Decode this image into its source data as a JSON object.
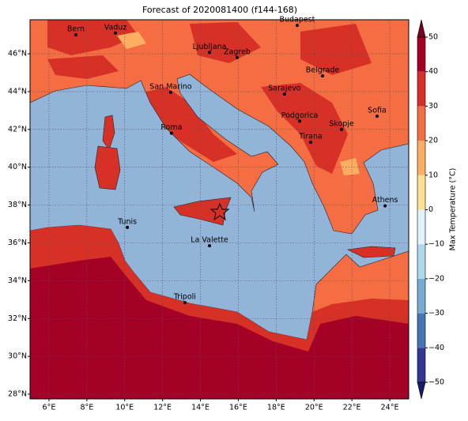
{
  "title": "Forecast of 2020081400 (f144-168)",
  "map": {
    "xlim": [
      5,
      25
    ],
    "ylim": [
      27.75,
      47.8
    ],
    "xticks": [
      {
        "value": 6,
        "label": "6°E"
      },
      {
        "value": 8,
        "label": "8°E"
      },
      {
        "value": 10,
        "label": "10°E"
      },
      {
        "value": 12,
        "label": "12°E"
      },
      {
        "value": 14,
        "label": "14°E"
      },
      {
        "value": 16,
        "label": "16°E"
      },
      {
        "value": 18,
        "label": "18°E"
      },
      {
        "value": 20,
        "label": "20°E"
      },
      {
        "value": 22,
        "label": "22°E"
      },
      {
        "value": 24,
        "label": "24°E"
      }
    ],
    "yticks": [
      {
        "value": 28,
        "label": "28°N"
      },
      {
        "value": 30,
        "label": "30°N"
      },
      {
        "value": 32,
        "label": "32°N"
      },
      {
        "value": 34,
        "label": "34°N"
      },
      {
        "value": 36,
        "label": "36°N"
      },
      {
        "value": 38,
        "label": "38°N"
      },
      {
        "value": 40,
        "label": "40°N"
      },
      {
        "value": 42,
        "label": "42°N"
      },
      {
        "value": 44,
        "label": "44°N"
      },
      {
        "value": 46,
        "label": "46°N"
      }
    ],
    "grid": true,
    "cities": [
      {
        "name": "Bern",
        "lon": 7.42,
        "lat": 47.0
      },
      {
        "name": "Vaduz",
        "lon": 9.51,
        "lat": 47.1
      },
      {
        "name": "Budapest",
        "lon": 19.11,
        "lat": 47.5
      },
      {
        "name": "Ljubljana",
        "lon": 14.48,
        "lat": 46.07
      },
      {
        "name": "Zagreb",
        "lon": 15.94,
        "lat": 45.8
      },
      {
        "name": "Belgrade",
        "lon": 20.45,
        "lat": 44.83
      },
      {
        "name": "San Marino",
        "lon": 12.43,
        "lat": 43.96
      },
      {
        "name": "Sarajevo",
        "lon": 18.44,
        "lat": 43.87
      },
      {
        "name": "Sofia",
        "lon": 23.33,
        "lat": 42.7
      },
      {
        "name": "Podgorica",
        "lon": 19.24,
        "lat": 42.44
      },
      {
        "name": "Skopje",
        "lon": 21.45,
        "lat": 42.0
      },
      {
        "name": "Roma",
        "lon": 12.47,
        "lat": 41.8
      },
      {
        "name": "Tirana",
        "lon": 19.82,
        "lat": 41.32
      },
      {
        "name": "Athens",
        "lon": 23.75,
        "lat": 37.96
      },
      {
        "name": "Tunis",
        "lon": 10.14,
        "lat": 36.82
      },
      {
        "name": "La Valette",
        "lon": 14.48,
        "lat": 35.85
      },
      {
        "name": "Tripoli",
        "lon": 13.18,
        "lat": 32.84
      }
    ]
  },
  "colorbar": {
    "label": "Max Temperature (°C)",
    "clim": [
      -50,
      50
    ],
    "ticks": [
      {
        "value": -50,
        "label": "−50"
      },
      {
        "value": -40,
        "label": "−40"
      },
      {
        "value": -30,
        "label": "−30"
      },
      {
        "value": -20,
        "label": "−20"
      },
      {
        "value": -10,
        "label": "−10"
      },
      0,
      10,
      20,
      30,
      40,
      50
    ],
    "colors": [
      "#313695",
      "#4575b4",
      "#74add1",
      "#abd9e9",
      "#e0f3f8",
      "#fee090",
      "#fdae61",
      "#f46d43",
      "#d73027",
      "#a50026"
    ],
    "under_color": "#1a1a6e",
    "over_color": "#7a0020"
  }
}
